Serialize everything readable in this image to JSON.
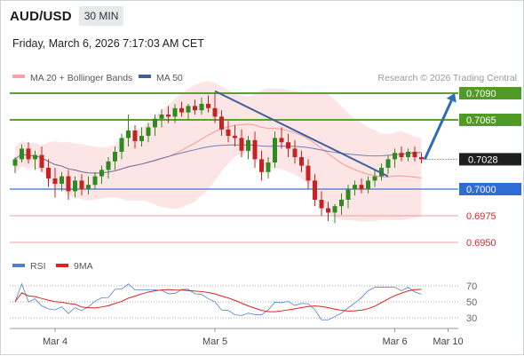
{
  "header": {
    "symbol": "AUD/USD",
    "timeframe": "30 MIN",
    "datetime": "Friday, March 6, 2026 7:17:03 AM CET"
  },
  "legend": {
    "bb_label": "MA 20 + Bollinger Bands",
    "ma50_label": "MA 50",
    "credit": "Research © 2026 Trading Central",
    "rsi_label": "RSI",
    "rsi_ma_label": "9MA"
  },
  "colors": {
    "green_line": "#5aa12f",
    "blue_line": "#5b87e0",
    "red_line": "#e8a0a0",
    "bb_fill": "#fde0e0",
    "ma20": "#f29a9a",
    "ma50": "#3f5f9f",
    "up_candle": "#2e8b1f",
    "down_candle": "#c52222",
    "arrow": "#2f6cb5",
    "rsi": "#4d7fd6",
    "rsi_ma": "#e01f1f"
  },
  "chart_data": {
    "type": "candlestick",
    "timeframe": "30 MIN",
    "price_range": [
      0.694,
      0.71
    ],
    "levels": [
      {
        "value": 0.709,
        "label": "0.7090",
        "style": "resistance-green"
      },
      {
        "value": 0.7065,
        "label": "0.7065",
        "style": "resistance-green"
      },
      {
        "value": 0.7028,
        "label": "0.7028",
        "style": "last-price"
      },
      {
        "value": 0.7,
        "label": "0.7000",
        "style": "pivot-blue"
      },
      {
        "value": 0.6975,
        "label": "0.6975",
        "style": "support-red"
      },
      {
        "value": 0.695,
        "label": "0.6950",
        "style": "support-red"
      }
    ],
    "x_ticks": [
      "Mar 4",
      "Mar 5",
      "Mar 6",
      "Mar 10"
    ],
    "x_tick_index": [
      6,
      30,
      57,
      65
    ],
    "ohlc": [
      [
        0.7022,
        0.703,
        0.7015,
        0.7028
      ],
      [
        0.7028,
        0.7042,
        0.7025,
        0.7038
      ],
      [
        0.7038,
        0.7044,
        0.7024,
        0.7028
      ],
      [
        0.7028,
        0.7036,
        0.7018,
        0.7032
      ],
      [
        0.7032,
        0.704,
        0.7016,
        0.702
      ],
      [
        0.702,
        0.7028,
        0.7002,
        0.701
      ],
      [
        0.701,
        0.702,
        0.6992,
        0.7005
      ],
      [
        0.7005,
        0.7016,
        0.6998,
        0.7012
      ],
      [
        0.7012,
        0.7018,
        0.699,
        0.6998
      ],
      [
        0.6998,
        0.7012,
        0.6992,
        0.7008
      ],
      [
        0.7008,
        0.7014,
        0.6994,
        0.7
      ],
      [
        0.7,
        0.7012,
        0.6995,
        0.7004
      ],
      [
        0.7004,
        0.7016,
        0.7,
        0.7012
      ],
      [
        0.7012,
        0.7022,
        0.7005,
        0.7018
      ],
      [
        0.7018,
        0.703,
        0.701,
        0.7026
      ],
      [
        0.7026,
        0.704,
        0.7018,
        0.7035
      ],
      [
        0.7035,
        0.7052,
        0.7028,
        0.7048
      ],
      [
        0.7048,
        0.707,
        0.704,
        0.7055
      ],
      [
        0.7055,
        0.706,
        0.7038,
        0.7045
      ],
      [
        0.7045,
        0.7058,
        0.704,
        0.705
      ],
      [
        0.705,
        0.7062,
        0.7044,
        0.7058
      ],
      [
        0.7058,
        0.707,
        0.705,
        0.7066
      ],
      [
        0.7066,
        0.7075,
        0.7058,
        0.707
      ],
      [
        0.707,
        0.7078,
        0.7062,
        0.7068
      ],
      [
        0.7068,
        0.708,
        0.7062,
        0.7076
      ],
      [
        0.7076,
        0.7082,
        0.7068,
        0.7072
      ],
      [
        0.7072,
        0.708,
        0.7065,
        0.7078
      ],
      [
        0.7078,
        0.7084,
        0.707,
        0.7074
      ],
      [
        0.7074,
        0.7086,
        0.707,
        0.708
      ],
      [
        0.708,
        0.7088,
        0.7072,
        0.7076
      ],
      [
        0.7076,
        0.709,
        0.7062,
        0.7068
      ],
      [
        0.7068,
        0.7074,
        0.705,
        0.7056
      ],
      [
        0.7056,
        0.7064,
        0.7044,
        0.705
      ],
      [
        0.705,
        0.706,
        0.704,
        0.7048
      ],
      [
        0.7048,
        0.7056,
        0.703,
        0.7036
      ],
      [
        0.7036,
        0.705,
        0.7028,
        0.7046
      ],
      [
        0.7046,
        0.7054,
        0.702,
        0.7028
      ],
      [
        0.7028,
        0.7036,
        0.7008,
        0.7016
      ],
      [
        0.7016,
        0.703,
        0.701,
        0.7025
      ],
      [
        0.7025,
        0.7054,
        0.702,
        0.7048
      ],
      [
        0.7048,
        0.7058,
        0.7038,
        0.7044
      ],
      [
        0.7044,
        0.7052,
        0.703,
        0.7038
      ],
      [
        0.7038,
        0.7046,
        0.7024,
        0.703
      ],
      [
        0.703,
        0.7036,
        0.7016,
        0.7022
      ],
      [
        0.7022,
        0.7028,
        0.7,
        0.7008
      ],
      [
        0.7008,
        0.7014,
        0.6984,
        0.699
      ],
      [
        0.699,
        0.6998,
        0.6975,
        0.6982
      ],
      [
        0.6982,
        0.6988,
        0.697,
        0.6978
      ],
      [
        0.6978,
        0.6986,
        0.6968,
        0.6984
      ],
      [
        0.6984,
        0.6996,
        0.6976,
        0.699
      ],
      [
        0.699,
        0.7004,
        0.6982,
        0.7
      ],
      [
        0.7,
        0.7008,
        0.6994,
        0.7004
      ],
      [
        0.7004,
        0.701,
        0.6996,
        0.7
      ],
      [
        0.7,
        0.7012,
        0.6996,
        0.7008
      ],
      [
        0.7008,
        0.7018,
        0.7002,
        0.7012
      ],
      [
        0.7012,
        0.7024,
        0.7008,
        0.702
      ],
      [
        0.702,
        0.7032,
        0.7014,
        0.7028
      ],
      [
        0.7028,
        0.7038,
        0.702,
        0.7034
      ],
      [
        0.7034,
        0.704,
        0.7026,
        0.703
      ],
      [
        0.703,
        0.7038,
        0.7026,
        0.7035
      ],
      [
        0.7035,
        0.704,
        0.7026,
        0.703
      ],
      [
        0.703,
        0.7034,
        0.7024,
        0.7028
      ]
    ],
    "trendline": {
      "from": [
        30,
        0.7092
      ],
      "to": [
        56,
        0.7012
      ]
    },
    "forecast_arrow": {
      "from": [
        61.5,
        0.7028
      ],
      "to": [
        66,
        0.709
      ]
    },
    "rsi": {
      "levels": [
        70,
        50,
        30
      ],
      "range": [
        20,
        80
      ]
    }
  }
}
